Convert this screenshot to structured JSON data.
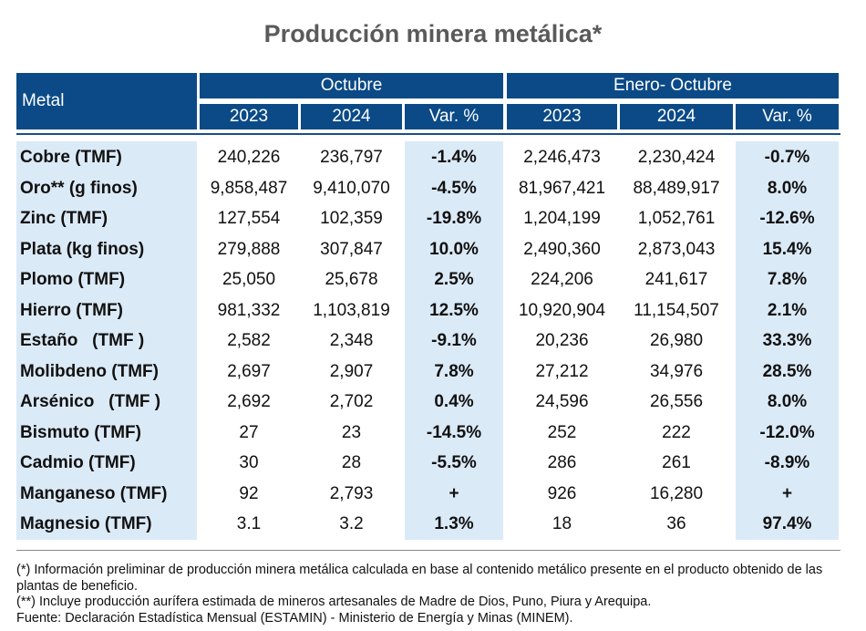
{
  "title": "Producción minera metálica*",
  "header": {
    "metal": "Metal",
    "group1": "Octubre",
    "group2": "Enero- Octubre",
    "columns": [
      "2023",
      "2024",
      "Var. %",
      "2023",
      "2024",
      "Var. %"
    ]
  },
  "rows": [
    {
      "metal": "Cobre (TMF)",
      "oct2023": "240,226",
      "oct2024": "236,797",
      "octvar": "-1.4%",
      "ytd2023": "2,246,473",
      "ytd2024": "2,230,424",
      "ytdvar": "-0.7%"
    },
    {
      "metal": "Oro** (g finos)",
      "oct2023": "9,858,487",
      "oct2024": "9,410,070",
      "octvar": "-4.5%",
      "ytd2023": "81,967,421",
      "ytd2024": "88,489,917",
      "ytdvar": "8.0%"
    },
    {
      "metal": "Zinc (TMF)",
      "oct2023": "127,554",
      "oct2024": "102,359",
      "octvar": "-19.8%",
      "ytd2023": "1,204,199",
      "ytd2024": "1,052,761",
      "ytdvar": "-12.6%"
    },
    {
      "metal": "Plata (kg finos)",
      "oct2023": "279,888",
      "oct2024": "307,847",
      "octvar": "10.0%",
      "ytd2023": "2,490,360",
      "ytd2024": "2,873,043",
      "ytdvar": "15.4%"
    },
    {
      "metal": "Plomo (TMF)",
      "oct2023": "25,050",
      "oct2024": "25,678",
      "octvar": "2.5%",
      "ytd2023": "224,206",
      "ytd2024": "241,617",
      "ytdvar": "7.8%"
    },
    {
      "metal": "Hierro (TMF)",
      "oct2023": "981,332",
      "oct2024": "1,103,819",
      "octvar": "12.5%",
      "ytd2023": "10,920,904",
      "ytd2024": "11,154,507",
      "ytdvar": "2.1%"
    },
    {
      "metal": "Estaño   (TMF )",
      "oct2023": "2,582",
      "oct2024": "2,348",
      "octvar": "-9.1%",
      "ytd2023": "20,236",
      "ytd2024": "26,980",
      "ytdvar": "33.3%"
    },
    {
      "metal": "Molibdeno (TMF)",
      "oct2023": "2,697",
      "oct2024": "2,907",
      "octvar": "7.8%",
      "ytd2023": "27,212",
      "ytd2024": "34,976",
      "ytdvar": "28.5%"
    },
    {
      "metal": "Arsénico   (TMF )",
      "oct2023": "2,692",
      "oct2024": "2,702",
      "octvar": "0.4%",
      "ytd2023": "24,596",
      "ytd2024": "26,556",
      "ytdvar": "8.0%"
    },
    {
      "metal": "Bismuto (TMF)",
      "oct2023": "27",
      "oct2024": "23",
      "octvar": "-14.5%",
      "ytd2023": "252",
      "ytd2024": "222",
      "ytdvar": "-12.0%"
    },
    {
      "metal": "Cadmio (TMF)",
      "oct2023": "30",
      "oct2024": "28",
      "octvar": "-5.5%",
      "ytd2023": "286",
      "ytd2024": "261",
      "ytdvar": "-8.9%"
    },
    {
      "metal": "Manganeso (TMF)",
      "oct2023": "92",
      "oct2024": "2,793",
      "octvar": "+",
      "ytd2023": "926",
      "ytd2024": "16,280",
      "ytdvar": "+"
    },
    {
      "metal": "Magnesio (TMF)",
      "oct2023": "3.1",
      "oct2024": "3.2",
      "octvar": "1.3%",
      "ytd2023": "18",
      "ytd2024": "36",
      "ytdvar": "97.4%"
    }
  ],
  "notes": [
    "(*) Información preliminar de producción minera metálica calculada en base al contenido metálico presente en el producto obtenido de las plantas de beneficio.",
    "(**) Incluye producción aurífera estimada de mineros artesanales de Madre de Dios, Puno, Piura y Arequipa.",
    "Fuente: Declaración Estadística Mensual (ESTAMIN) - Ministerio de Energía y Minas (MINEM)."
  ],
  "colors": {
    "header_bg": "#0b4a86",
    "band_bg": "#dbeaf7",
    "title": "#5a5a5a"
  }
}
